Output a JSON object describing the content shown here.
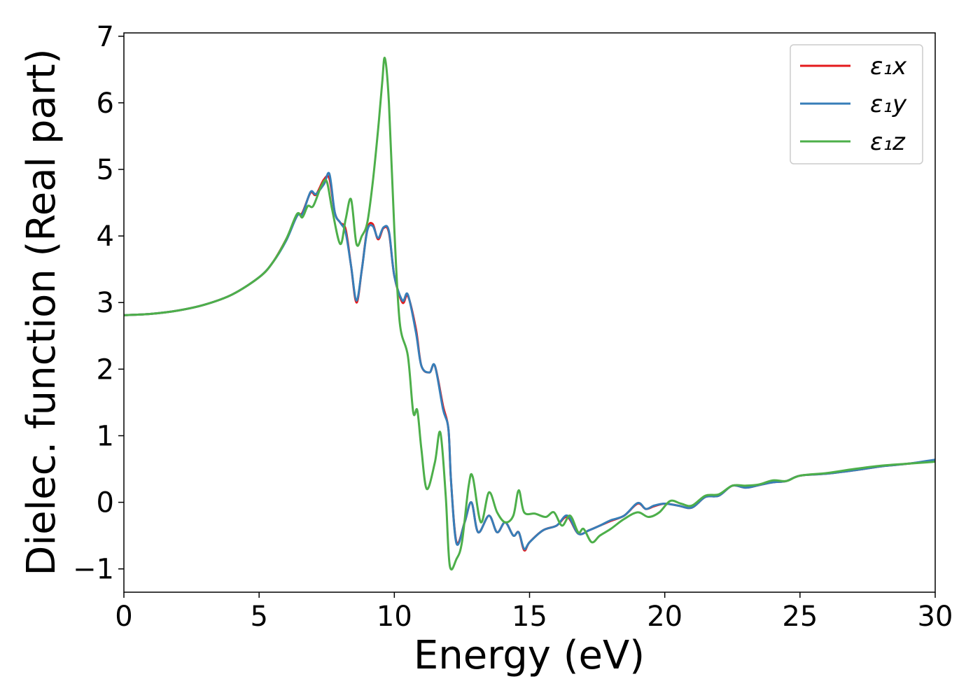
{
  "chart_data": {
    "type": "line",
    "xlabel": "Energy (eV)",
    "ylabel": "Dielec. function (Real part)",
    "xlim": [
      0,
      30
    ],
    "ylim": [
      -1.35,
      7.05
    ],
    "x_ticks": [
      "0",
      "5",
      "10",
      "15",
      "20",
      "25",
      "30"
    ],
    "y_ticks": [
      "−1",
      "0",
      "1",
      "2",
      "3",
      "4",
      "5",
      "6",
      "7"
    ],
    "x_tick_values": [
      0,
      5,
      10,
      15,
      20,
      25,
      30
    ],
    "y_tick_values": [
      -1,
      0,
      1,
      2,
      3,
      4,
      5,
      6,
      7
    ],
    "grid": false,
    "legend_position": "top-right",
    "series": [
      {
        "name": "ε₁x",
        "color": "#e41a1c",
        "points": [
          [
            0,
            2.81
          ],
          [
            1,
            2.83
          ],
          [
            2,
            2.88
          ],
          [
            3,
            2.97
          ],
          [
            4,
            3.12
          ],
          [
            5,
            3.38
          ],
          [
            5.5,
            3.6
          ],
          [
            6,
            3.95
          ],
          [
            6.4,
            4.3
          ],
          [
            6.6,
            4.35
          ],
          [
            6.9,
            4.65
          ],
          [
            7.1,
            4.62
          ],
          [
            7.4,
            4.85
          ],
          [
            7.6,
            4.86
          ],
          [
            7.8,
            4.35
          ],
          [
            8.0,
            4.2
          ],
          [
            8.2,
            4.1
          ],
          [
            8.4,
            3.55
          ],
          [
            8.6,
            3.0
          ],
          [
            8.8,
            3.5
          ],
          [
            9.0,
            4.1
          ],
          [
            9.2,
            4.18
          ],
          [
            9.4,
            3.95
          ],
          [
            9.6,
            4.12
          ],
          [
            9.8,
            4.05
          ],
          [
            10.0,
            3.4
          ],
          [
            10.3,
            3.0
          ],
          [
            10.5,
            3.1
          ],
          [
            10.8,
            2.6
          ],
          [
            11.0,
            2.05
          ],
          [
            11.3,
            1.95
          ],
          [
            11.5,
            2.05
          ],
          [
            11.8,
            1.45
          ],
          [
            12.0,
            1.1
          ],
          [
            12.1,
            0.3
          ],
          [
            12.3,
            -0.6
          ],
          [
            12.6,
            -0.3
          ],
          [
            12.85,
            0.0
          ],
          [
            13.1,
            -0.45
          ],
          [
            13.5,
            -0.2
          ],
          [
            13.8,
            -0.45
          ],
          [
            14.1,
            -0.3
          ],
          [
            14.4,
            -0.5
          ],
          [
            14.6,
            -0.45
          ],
          [
            14.8,
            -0.72
          ],
          [
            15.0,
            -0.6
          ],
          [
            15.5,
            -0.42
          ],
          [
            16.0,
            -0.35
          ],
          [
            16.4,
            -0.22
          ],
          [
            16.8,
            -0.47
          ],
          [
            17.2,
            -0.42
          ],
          [
            17.6,
            -0.35
          ],
          [
            18.0,
            -0.28
          ],
          [
            18.5,
            -0.2
          ],
          [
            19.0,
            -0.02
          ],
          [
            19.3,
            -0.1
          ],
          [
            19.6,
            -0.06
          ],
          [
            20.0,
            -0.02
          ],
          [
            20.5,
            -0.05
          ],
          [
            21.0,
            -0.08
          ],
          [
            21.5,
            0.08
          ],
          [
            22.0,
            0.1
          ],
          [
            22.5,
            0.25
          ],
          [
            23.0,
            0.22
          ],
          [
            23.5,
            0.26
          ],
          [
            24.0,
            0.3
          ],
          [
            24.5,
            0.32
          ],
          [
            25.0,
            0.4
          ],
          [
            26.0,
            0.43
          ],
          [
            27.0,
            0.48
          ],
          [
            28.0,
            0.54
          ],
          [
            29.0,
            0.58
          ],
          [
            30.0,
            0.63
          ]
        ]
      },
      {
        "name": "ε₁y",
        "color": "#377eb8",
        "points": [
          [
            0,
            2.81
          ],
          [
            1,
            2.83
          ],
          [
            2,
            2.88
          ],
          [
            3,
            2.97
          ],
          [
            4,
            3.12
          ],
          [
            5,
            3.38
          ],
          [
            5.5,
            3.6
          ],
          [
            6,
            3.93
          ],
          [
            6.4,
            4.3
          ],
          [
            6.6,
            4.33
          ],
          [
            6.9,
            4.66
          ],
          [
            7.1,
            4.63
          ],
          [
            7.4,
            4.78
          ],
          [
            7.6,
            4.93
          ],
          [
            7.8,
            4.35
          ],
          [
            8.0,
            4.2
          ],
          [
            8.2,
            4.05
          ],
          [
            8.4,
            3.55
          ],
          [
            8.6,
            3.03
          ],
          [
            8.8,
            3.5
          ],
          [
            9.0,
            4.08
          ],
          [
            9.2,
            4.15
          ],
          [
            9.4,
            3.97
          ],
          [
            9.6,
            4.13
          ],
          [
            9.8,
            4.07
          ],
          [
            10.0,
            3.4
          ],
          [
            10.3,
            3.03
          ],
          [
            10.5,
            3.12
          ],
          [
            10.8,
            2.55
          ],
          [
            11.0,
            2.05
          ],
          [
            11.3,
            1.95
          ],
          [
            11.5,
            2.05
          ],
          [
            11.8,
            1.4
          ],
          [
            12.0,
            1.1
          ],
          [
            12.1,
            0.3
          ],
          [
            12.3,
            -0.62
          ],
          [
            12.6,
            -0.3
          ],
          [
            12.85,
            0.0
          ],
          [
            13.1,
            -0.45
          ],
          [
            13.5,
            -0.2
          ],
          [
            13.8,
            -0.45
          ],
          [
            14.1,
            -0.3
          ],
          [
            14.4,
            -0.5
          ],
          [
            14.6,
            -0.45
          ],
          [
            14.8,
            -0.7
          ],
          [
            15.0,
            -0.6
          ],
          [
            15.5,
            -0.42
          ],
          [
            16.0,
            -0.35
          ],
          [
            16.4,
            -0.2
          ],
          [
            16.8,
            -0.47
          ],
          [
            17.2,
            -0.42
          ],
          [
            17.6,
            -0.35
          ],
          [
            18.0,
            -0.27
          ],
          [
            18.5,
            -0.2
          ],
          [
            19.0,
            -0.01
          ],
          [
            19.3,
            -0.1
          ],
          [
            19.6,
            -0.05
          ],
          [
            20.0,
            -0.02
          ],
          [
            20.5,
            -0.05
          ],
          [
            21.0,
            -0.08
          ],
          [
            21.5,
            0.08
          ],
          [
            22.0,
            0.1
          ],
          [
            22.5,
            0.25
          ],
          [
            23.0,
            0.22
          ],
          [
            23.5,
            0.26
          ],
          [
            24.0,
            0.3
          ],
          [
            24.5,
            0.32
          ],
          [
            25.0,
            0.4
          ],
          [
            26.0,
            0.43
          ],
          [
            27.0,
            0.48
          ],
          [
            28.0,
            0.54
          ],
          [
            29.0,
            0.58
          ],
          [
            30.0,
            0.64
          ]
        ]
      },
      {
        "name": "ε₁z",
        "color": "#4daf4a",
        "points": [
          [
            0,
            2.81
          ],
          [
            1,
            2.83
          ],
          [
            2,
            2.88
          ],
          [
            3,
            2.97
          ],
          [
            4,
            3.12
          ],
          [
            5,
            3.38
          ],
          [
            5.5,
            3.6
          ],
          [
            6,
            3.95
          ],
          [
            6.4,
            4.33
          ],
          [
            6.6,
            4.28
          ],
          [
            6.8,
            4.45
          ],
          [
            7.0,
            4.45
          ],
          [
            7.3,
            4.75
          ],
          [
            7.5,
            4.82
          ],
          [
            7.7,
            4.4
          ],
          [
            8.0,
            3.88
          ],
          [
            8.2,
            4.25
          ],
          [
            8.4,
            4.55
          ],
          [
            8.6,
            3.88
          ],
          [
            8.8,
            4.0
          ],
          [
            9.0,
            4.2
          ],
          [
            9.2,
            4.8
          ],
          [
            9.4,
            5.6
          ],
          [
            9.55,
            6.3
          ],
          [
            9.65,
            6.67
          ],
          [
            9.8,
            6.0
          ],
          [
            10.0,
            4.1
          ],
          [
            10.2,
            2.7
          ],
          [
            10.5,
            2.2
          ],
          [
            10.7,
            1.35
          ],
          [
            10.85,
            1.38
          ],
          [
            11.0,
            0.8
          ],
          [
            11.2,
            0.2
          ],
          [
            11.5,
            0.6
          ],
          [
            11.7,
            1.05
          ],
          [
            11.9,
            0.1
          ],
          [
            12.05,
            -0.95
          ],
          [
            12.3,
            -0.85
          ],
          [
            12.5,
            -0.6
          ],
          [
            12.75,
            0.25
          ],
          [
            12.9,
            0.38
          ],
          [
            13.2,
            -0.3
          ],
          [
            13.5,
            0.15
          ],
          [
            13.8,
            -0.15
          ],
          [
            14.1,
            -0.3
          ],
          [
            14.4,
            -0.2
          ],
          [
            14.6,
            0.18
          ],
          [
            14.8,
            -0.15
          ],
          [
            15.2,
            -0.17
          ],
          [
            15.6,
            -0.22
          ],
          [
            15.9,
            -0.15
          ],
          [
            16.2,
            -0.35
          ],
          [
            16.5,
            -0.2
          ],
          [
            16.8,
            -0.45
          ],
          [
            17.0,
            -0.4
          ],
          [
            17.3,
            -0.6
          ],
          [
            17.6,
            -0.5
          ],
          [
            18.0,
            -0.4
          ],
          [
            18.5,
            -0.25
          ],
          [
            19.0,
            -0.15
          ],
          [
            19.4,
            -0.22
          ],
          [
            19.8,
            -0.15
          ],
          [
            20.2,
            0.02
          ],
          [
            20.6,
            -0.02
          ],
          [
            21.0,
            -0.05
          ],
          [
            21.5,
            0.1
          ],
          [
            22.0,
            0.12
          ],
          [
            22.5,
            0.25
          ],
          [
            23.0,
            0.25
          ],
          [
            23.5,
            0.27
          ],
          [
            24.0,
            0.33
          ],
          [
            24.5,
            0.32
          ],
          [
            25.0,
            0.4
          ],
          [
            26.0,
            0.44
          ],
          [
            27.0,
            0.5
          ],
          [
            28.0,
            0.55
          ],
          [
            29.0,
            0.58
          ],
          [
            30.0,
            0.61
          ]
        ]
      }
    ]
  }
}
